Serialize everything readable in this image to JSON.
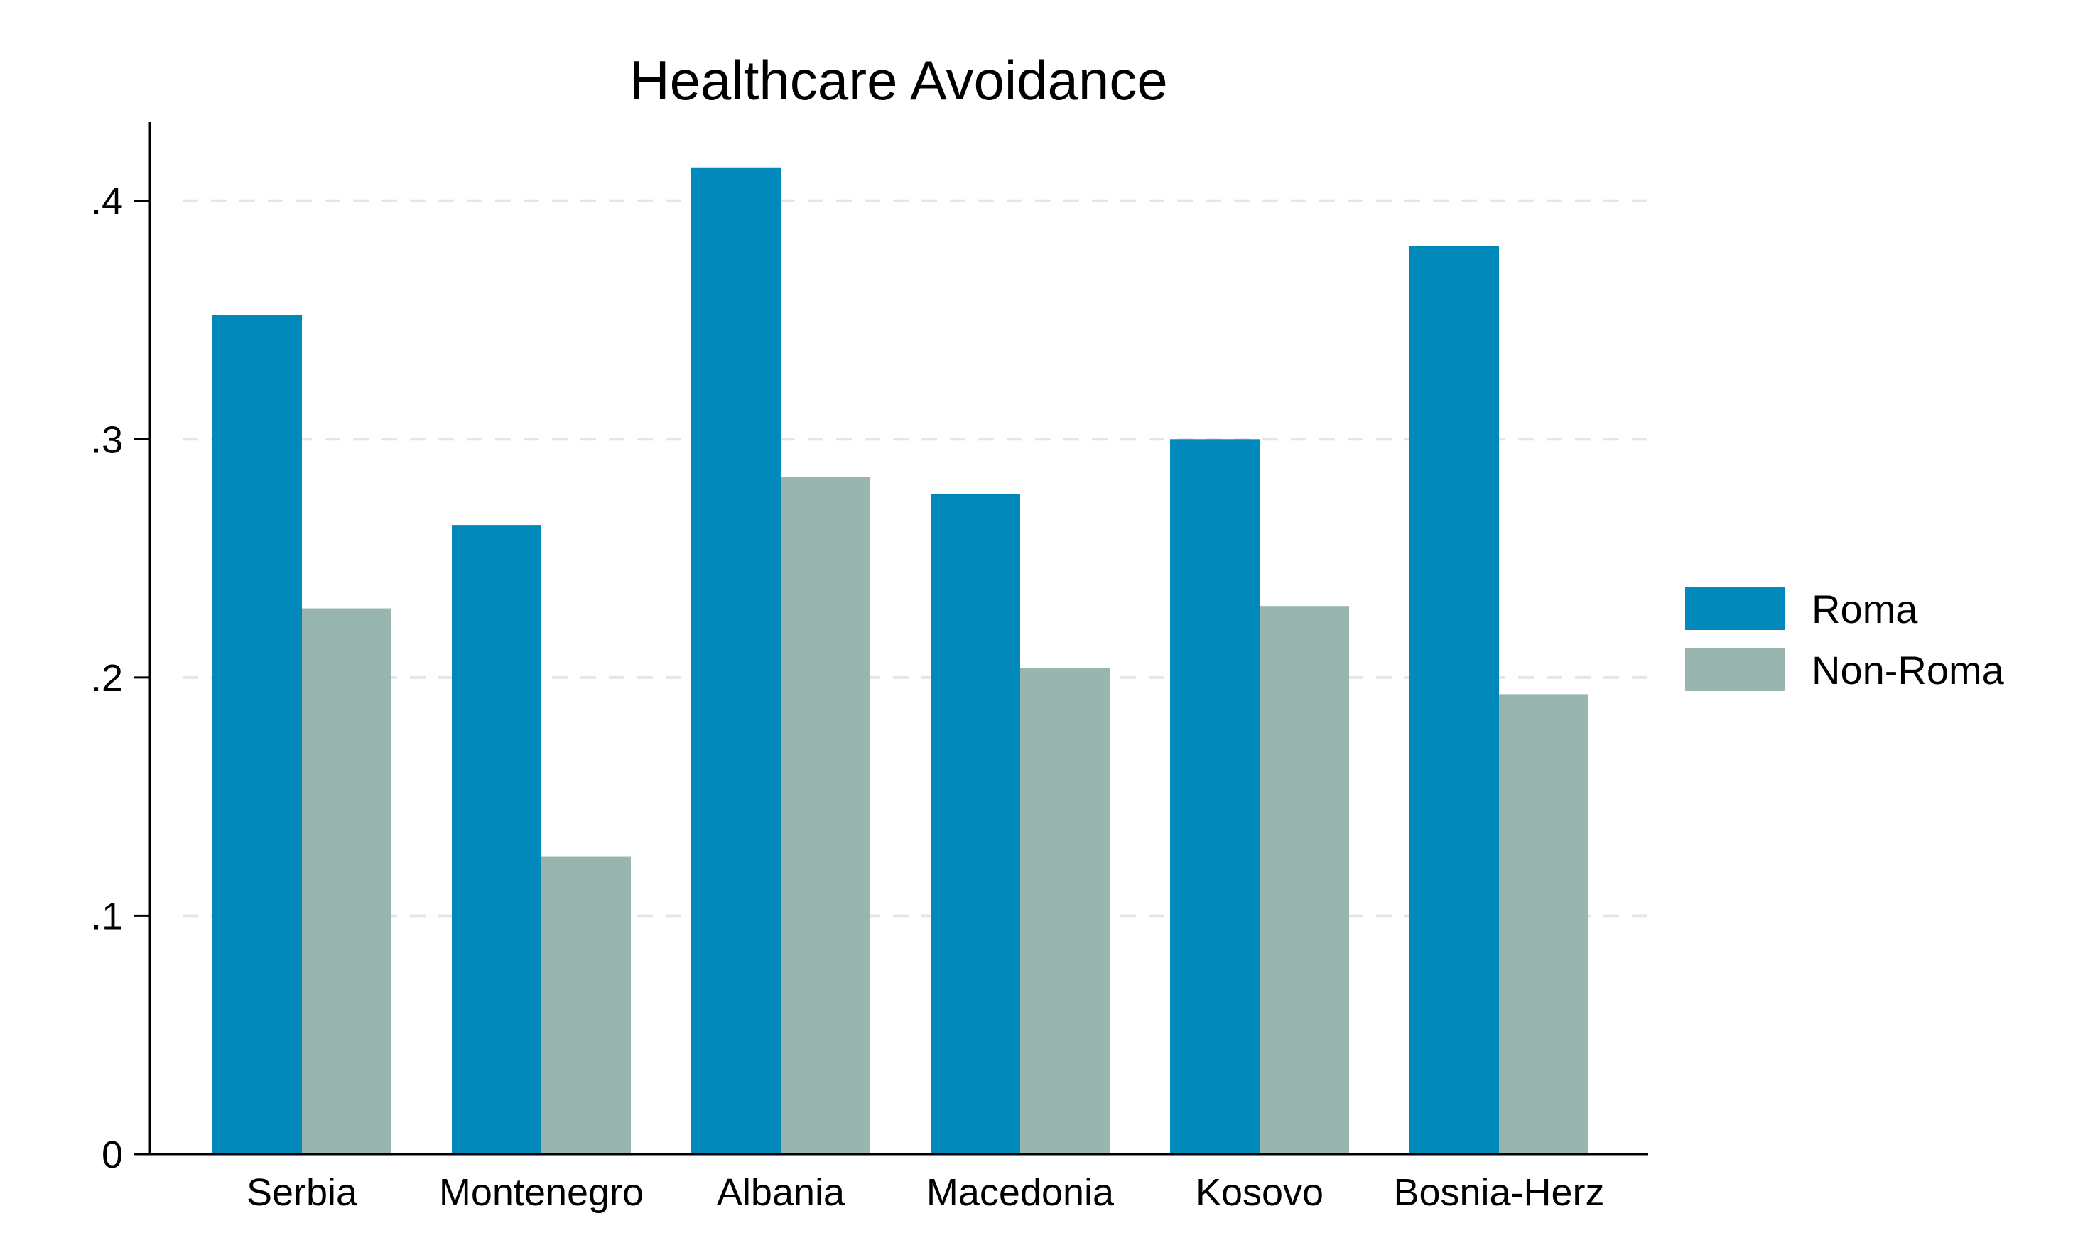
{
  "chart_data": {
    "type": "bar",
    "title": "Healthcare Avoidance",
    "xlabel": "",
    "ylabel": "",
    "categories": [
      "Serbia",
      "Montenegro",
      "Albania",
      "Macedonia",
      "Kosovo",
      "Bosnia-Herz"
    ],
    "series": [
      {
        "name": "Roma",
        "color": "#0189bb",
        "values": [
          0.352,
          0.264,
          0.414,
          0.277,
          0.3,
          0.381
        ]
      },
      {
        "name": "Non-Roma",
        "color": "#98b5af",
        "values": [
          0.229,
          0.125,
          0.284,
          0.204,
          0.23,
          0.193
        ]
      }
    ],
    "ylim": [
      0,
      0.433
    ],
    "yticks": [
      {
        "value": 0,
        "label": "0"
      },
      {
        "value": 0.1,
        "label": ".1"
      },
      {
        "value": 0.2,
        "label": ".2"
      },
      {
        "value": 0.3,
        "label": ".3"
      },
      {
        "value": 0.4,
        "label": ".4"
      }
    ],
    "grid": true,
    "legend_position": "right"
  }
}
